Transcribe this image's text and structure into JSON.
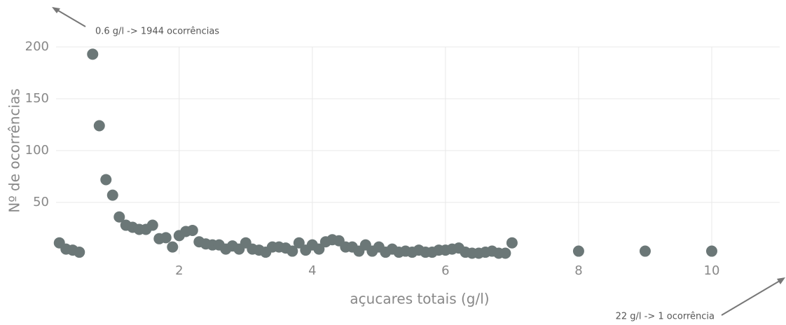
{
  "chart_data": {
    "type": "scatter",
    "xlabel": "açucares totais (g/l)",
    "ylabel": "Nº de ocorrências",
    "annotations": [
      "0.6 g/l -> 1944 ocorrências",
      "22 g/l -> 1 ocorrência"
    ],
    "color": "#6b7777",
    "grid": true,
    "xlim": [
      0.15,
      11
    ],
    "xticks": [
      2,
      4,
      6,
      8,
      10
    ],
    "ylim": [
      0,
      200
    ],
    "yticks": [
      50,
      100,
      150,
      200
    ],
    "x": [
      0.2,
      0.3,
      0.4,
      0.5,
      0.7,
      0.8,
      0.9,
      1.0,
      1.1,
      1.2,
      1.3,
      1.4,
      1.5,
      1.6,
      1.7,
      1.8,
      1.9,
      2.0,
      2.1,
      2.2,
      2.3,
      2.4,
      2.5,
      2.6,
      2.7,
      2.8,
      2.9,
      3.0,
      3.1,
      3.2,
      3.3,
      3.4,
      3.5,
      3.6,
      3.7,
      3.8,
      3.9,
      4.0,
      4.1,
      4.2,
      4.3,
      4.4,
      4.5,
      4.6,
      4.7,
      4.8,
      4.9,
      5.0,
      5.1,
      5.2,
      5.3,
      5.4,
      5.5,
      5.6,
      5.7,
      5.8,
      5.9,
      6.0,
      6.1,
      6.2,
      6.3,
      6.4,
      6.5,
      6.6,
      6.7,
      6.8,
      6.9,
      7.0,
      8,
      9,
      10
    ],
    "values": [
      11,
      5,
      4,
      2,
      193,
      124,
      72,
      57,
      36,
      28,
      26,
      24,
      24,
      28,
      15,
      16,
      7,
      18,
      22,
      23,
      12,
      10,
      9,
      9,
      5,
      8,
      5,
      11,
      5,
      4,
      2,
      7,
      7,
      6,
      3,
      11,
      4,
      9,
      5,
      12,
      14,
      13,
      7,
      7,
      3,
      9,
      3,
      7,
      2,
      5,
      2,
      3,
      2,
      4,
      2,
      2,
      4,
      4,
      5,
      6,
      2,
      1,
      1,
      2,
      3,
      1,
      1,
      11,
      3,
      3,
      3
    ]
  }
}
